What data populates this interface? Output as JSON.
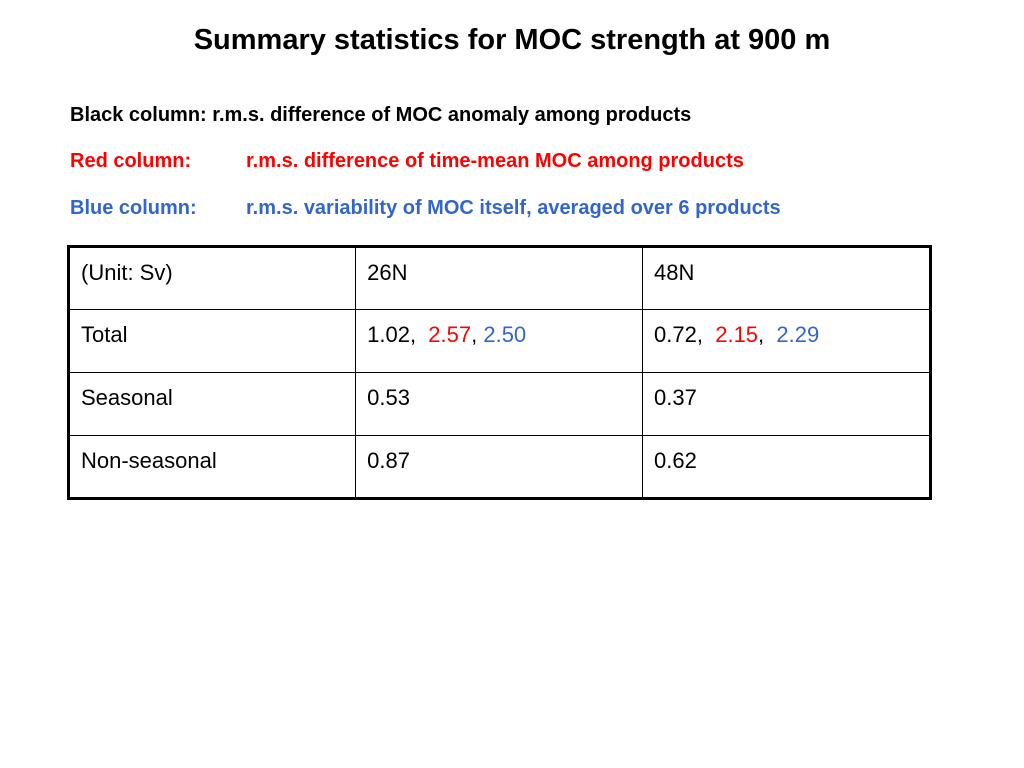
{
  "title": "Summary statistics for MOC strength at 900 m",
  "colors": {
    "black": "#000000",
    "red": "#ff0000",
    "blue": "#3366cc"
  },
  "legend": [
    {
      "label": "Black column:",
      "text": "r.m.s. difference of MOC anomaly among products",
      "color": "#000000"
    },
    {
      "label": "Red column:",
      "text": "r.m.s. difference of time-mean MOC among products",
      "color": "#ff0000"
    },
    {
      "label": "Blue column:",
      "text": "r.m.s. variability of MOC itself, averaged over 6 products",
      "color": "#3366cc"
    }
  ],
  "table": {
    "headers": [
      "(Unit: Sv)",
      "26N",
      "48N"
    ],
    "rows": [
      {
        "label": "Total",
        "n26": {
          "black": "1.02",
          "red": "2.57",
          "blue": "2.50"
        },
        "n48": {
          "black": "0.72",
          "red": "2.15",
          "blue": "2.29"
        }
      },
      {
        "label": "Seasonal",
        "n26": "0.53",
        "n48": "0.37"
      },
      {
        "label": "Non-seasonal",
        "n26": "0.87",
        "n48": "0.62"
      }
    ]
  }
}
